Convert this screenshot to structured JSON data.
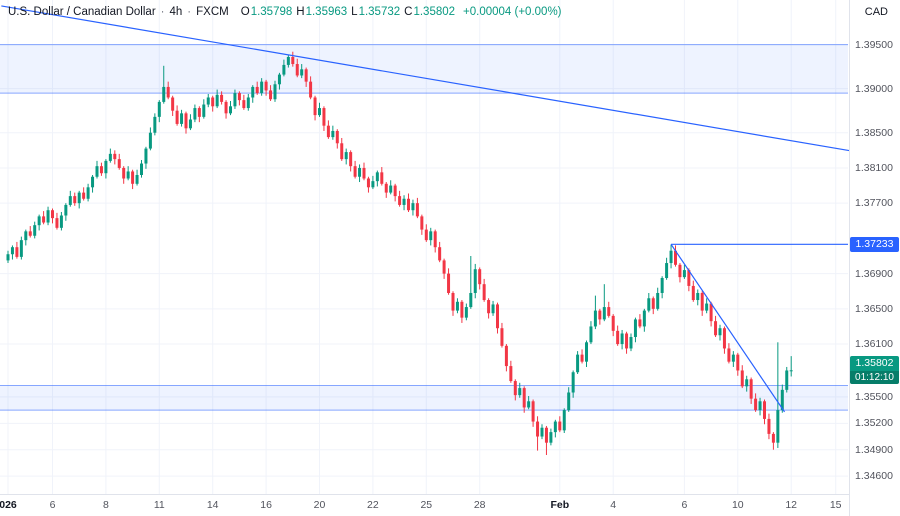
{
  "header": {
    "symbol": "U.S. Dollar / Canadian Dollar",
    "separator": "·",
    "interval": "4h",
    "exchange": "FXCM",
    "o_label": "O",
    "o": "1.35798",
    "h_label": "H",
    "h": "1.35963",
    "l_label": "L",
    "l": "1.35732",
    "c_label": "C",
    "c": "1.35802",
    "change": "+0.00004 (+0.00%)",
    "currency": "CAD"
  },
  "colors": {
    "up": "#089981",
    "down": "#f23645",
    "drawing": "#2962ff",
    "zone_fill": "rgba(41,98,255,0.08)",
    "zone_border": "rgba(41,98,255,0.55)",
    "label_blue_bg": "#2962ff",
    "label_green_bg": "#089981",
    "axis_text": "#51535c",
    "grid": "#f0f3fa"
  },
  "chart_data": {
    "type": "candlestick",
    "title": "U.S. Dollar / Canadian Dollar",
    "interval": "4h",
    "exchange": "FXCM",
    "price_base": 1.0,
    "price_unit": 0.0001,
    "price_axis_ticks": [
      "1.39500",
      "1.39000",
      "1.38500",
      "1.38100",
      "1.37700",
      "1.36900",
      "1.36500",
      "1.36100",
      "1.35500",
      "1.35200",
      "1.34900",
      "1.34600"
    ],
    "time_axis_labels": [
      {
        "label": "026",
        "idx": 0,
        "emph": true
      },
      {
        "label": "6",
        "idx": 10
      },
      {
        "label": "8",
        "idx": 22
      },
      {
        "label": "11",
        "idx": 34
      },
      {
        "label": "14",
        "idx": 46
      },
      {
        "label": "16",
        "idx": 58
      },
      {
        "label": "20",
        "idx": 70
      },
      {
        "label": "22",
        "idx": 82
      },
      {
        "label": "25",
        "idx": 94
      },
      {
        "label": "28",
        "idx": 106
      },
      {
        "label": "Feb",
        "idx": 124,
        "emph": true
      },
      {
        "label": "4",
        "idx": 136
      },
      {
        "label": "6",
        "idx": 152
      },
      {
        "label": "10",
        "idx": 164
      },
      {
        "label": "12",
        "idx": 176
      },
      {
        "label": "15",
        "idx": 186
      }
    ],
    "candles": [
      [
        3705,
        3716,
        3702,
        3712
      ],
      [
        3712,
        3722,
        3706,
        3720
      ],
      [
        3720,
        3726,
        3707,
        3709
      ],
      [
        3709,
        3732,
        3706,
        3728
      ],
      [
        3728,
        3740,
        3722,
        3738
      ],
      [
        3738,
        3744,
        3731,
        3733
      ],
      [
        3733,
        3749,
        3730,
        3745
      ],
      [
        3745,
        3757,
        3739,
        3755
      ],
      [
        3755,
        3761,
        3746,
        3748
      ],
      [
        3748,
        3766,
        3745,
        3762
      ],
      [
        3762,
        3764,
        3747,
        3753
      ],
      [
        3753,
        3759,
        3740,
        3742
      ],
      [
        3742,
        3760,
        3739,
        3756
      ],
      [
        3756,
        3770,
        3750,
        3768
      ],
      [
        3768,
        3784,
        3766,
        3778
      ],
      [
        3778,
        3782,
        3767,
        3770
      ],
      [
        3770,
        3784,
        3764,
        3782
      ],
      [
        3782,
        3788,
        3773,
        3775
      ],
      [
        3775,
        3792,
        3772,
        3788
      ],
      [
        3788,
        3802,
        3782,
        3800
      ],
      [
        3800,
        3818,
        3798,
        3812
      ],
      [
        3812,
        3816,
        3801,
        3804
      ],
      [
        3804,
        3820,
        3798,
        3818
      ],
      [
        3818,
        3832,
        3816,
        3826
      ],
      [
        3826,
        3830,
        3814,
        3820
      ],
      [
        3820,
        3826,
        3808,
        3810
      ],
      [
        3810,
        3812,
        3792,
        3798
      ],
      [
        3798,
        3812,
        3796,
        3806
      ],
      [
        3806,
        3808,
        3786,
        3792
      ],
      [
        3792,
        3808,
        3790,
        3802
      ],
      [
        3802,
        3819,
        3799,
        3815
      ],
      [
        3815,
        3834,
        3809,
        3832
      ],
      [
        3832,
        3856,
        3830,
        3850
      ],
      [
        3850,
        3872,
        3847,
        3868
      ],
      [
        3868,
        3887,
        3862,
        3885
      ],
      [
        3885,
        3926,
        3883,
        3902
      ],
      [
        3902,
        3908,
        3888,
        3890
      ],
      [
        3890,
        3892,
        3869,
        3875
      ],
      [
        3875,
        3881,
        3858,
        3860
      ],
      [
        3860,
        3876,
        3857,
        3872
      ],
      [
        3872,
        3874,
        3849,
        3855
      ],
      [
        3855,
        3871,
        3853,
        3865
      ],
      [
        3865,
        3882,
        3862,
        3878
      ],
      [
        3878,
        3880,
        3862,
        3868
      ],
      [
        3868,
        3888,
        3866,
        3882
      ],
      [
        3882,
        3894,
        3879,
        3890
      ],
      [
        3890,
        3892,
        3874,
        3880
      ],
      [
        3880,
        3899,
        3878,
        3893
      ],
      [
        3893,
        3897,
        3882,
        3885
      ],
      [
        3885,
        3887,
        3866,
        3872
      ],
      [
        3872,
        3886,
        3870,
        3880
      ],
      [
        3880,
        3899,
        3877,
        3895
      ],
      [
        3895,
        3897,
        3881,
        3887
      ],
      [
        3887,
        3893,
        3876,
        3878
      ],
      [
        3878,
        3894,
        3875,
        3890
      ],
      [
        3890,
        3904,
        3884,
        3902
      ],
      [
        3902,
        3908,
        3893,
        3895
      ],
      [
        3895,
        3912,
        3892,
        3908
      ],
      [
        3908,
        3910,
        3892,
        3898
      ],
      [
        3898,
        3904,
        3886,
        3888
      ],
      [
        3888,
        3909,
        3885,
        3905
      ],
      [
        3905,
        3918,
        3899,
        3916
      ],
      [
        3916,
        3933,
        3914,
        3927
      ],
      [
        3927,
        3938,
        3924,
        3936
      ],
      [
        3936,
        3942,
        3925,
        3928
      ],
      [
        3928,
        3934,
        3913,
        3915
      ],
      [
        3915,
        3928,
        3912,
        3922
      ],
      [
        3922,
        3924,
        3902,
        3908
      ],
      [
        3908,
        3914,
        3888,
        3890
      ],
      [
        3890,
        3892,
        3864,
        3870
      ],
      [
        3870,
        3884,
        3868,
        3878
      ],
      [
        3878,
        3880,
        3852,
        3858
      ],
      [
        3858,
        3864,
        3843,
        3845
      ],
      [
        3845,
        3858,
        3842,
        3852
      ],
      [
        3852,
        3854,
        3832,
        3838
      ],
      [
        3838,
        3844,
        3818,
        3820
      ],
      [
        3820,
        3832,
        3814,
        3828
      ],
      [
        3828,
        3830,
        3806,
        3812
      ],
      [
        3812,
        3818,
        3798,
        3800
      ],
      [
        3800,
        3814,
        3794,
        3810
      ],
      [
        3810,
        3816,
        3796,
        3798
      ],
      [
        3798,
        3800,
        3782,
        3788
      ],
      [
        3788,
        3801,
        3786,
        3795
      ],
      [
        3795,
        3807,
        3789,
        3805
      ],
      [
        3805,
        3811,
        3790,
        3792
      ],
      [
        3792,
        3794,
        3776,
        3782
      ],
      [
        3782,
        3796,
        3780,
        3790
      ],
      [
        3790,
        3792,
        3772,
        3778
      ],
      [
        3778,
        3784,
        3766,
        3768
      ],
      [
        3768,
        3779,
        3762,
        3775
      ],
      [
        3775,
        3781,
        3760,
        3762
      ],
      [
        3762,
        3774,
        3756,
        3770
      ],
      [
        3770,
        3776,
        3753,
        3755
      ],
      [
        3755,
        3757,
        3734,
        3740
      ],
      [
        3740,
        3746,
        3726,
        3728
      ],
      [
        3728,
        3742,
        3722,
        3738
      ],
      [
        3738,
        3740,
        3714,
        3720
      ],
      [
        3720,
        3726,
        3703,
        3705
      ],
      [
        3705,
        3707,
        3684,
        3690
      ],
      [
        3690,
        3696,
        3666,
        3668
      ],
      [
        3668,
        3670,
        3642,
        3648
      ],
      [
        3648,
        3662,
        3645,
        3658
      ],
      [
        3658,
        3660,
        3634,
        3640
      ],
      [
        3640,
        3656,
        3637,
        3652
      ],
      [
        3652,
        3710,
        3650,
        3668
      ],
      [
        3668,
        3701,
        3662,
        3695
      ],
      [
        3695,
        3697,
        3672,
        3678
      ],
      [
        3678,
        3684,
        3658,
        3660
      ],
      [
        3660,
        3662,
        3639,
        3645
      ],
      [
        3645,
        3659,
        3642,
        3655
      ],
      [
        3655,
        3657,
        3622,
        3628
      ],
      [
        3628,
        3634,
        3606,
        3608
      ],
      [
        3608,
        3610,
        3579,
        3585
      ],
      [
        3585,
        3591,
        3566,
        3568
      ],
      [
        3568,
        3570,
        3546,
        3552
      ],
      [
        3552,
        3566,
        3549,
        3560
      ],
      [
        3560,
        3562,
        3532,
        3538
      ],
      [
        3538,
        3551,
        3536,
        3545
      ],
      [
        3545,
        3547,
        3516,
        3522
      ],
      [
        3522,
        3528,
        3489,
        3505
      ],
      [
        3505,
        3519,
        3502,
        3515
      ],
      [
        3515,
        3517,
        3484,
        3498
      ],
      [
        3498,
        3514,
        3495,
        3510
      ],
      [
        3510,
        3524,
        3504,
        3522
      ],
      [
        3522,
        3528,
        3510,
        3512
      ],
      [
        3512,
        3537,
        3509,
        3535
      ],
      [
        3535,
        3561,
        3533,
        3555
      ],
      [
        3555,
        3580,
        3549,
        3578
      ],
      [
        3578,
        3602,
        3576,
        3598
      ],
      [
        3598,
        3604,
        3588,
        3590
      ],
      [
        3590,
        3614,
        3584,
        3612
      ],
      [
        3612,
        3636,
        3610,
        3630
      ],
      [
        3630,
        3665,
        3627,
        3648
      ],
      [
        3648,
        3650,
        3632,
        3638
      ],
      [
        3638,
        3678,
        3636,
        3652
      ],
      [
        3652,
        3658,
        3640,
        3642
      ],
      [
        3642,
        3644,
        3619,
        3625
      ],
      [
        3625,
        3631,
        3608,
        3610
      ],
      [
        3610,
        3626,
        3604,
        3622
      ],
      [
        3622,
        3624,
        3599,
        3605
      ],
      [
        3605,
        3622,
        3602,
        3618
      ],
      [
        3618,
        3640,
        3612,
        3638
      ],
      [
        3638,
        3644,
        3628,
        3630
      ],
      [
        3630,
        3650,
        3624,
        3648
      ],
      [
        3648,
        3668,
        3646,
        3662
      ],
      [
        3662,
        3664,
        3644,
        3650
      ],
      [
        3650,
        3674,
        3648,
        3668
      ],
      [
        3668,
        3687,
        3662,
        3685
      ],
      [
        3685,
        3708,
        3683,
        3702
      ],
      [
        3702,
        3723,
        3696,
        3716
      ],
      [
        3716,
        3722,
        3698,
        3700
      ],
      [
        3700,
        3702,
        3680,
        3686
      ],
      [
        3686,
        3700,
        3684,
        3694
      ],
      [
        3694,
        3696,
        3670,
        3676
      ],
      [
        3676,
        3682,
        3658,
        3660
      ],
      [
        3660,
        3672,
        3654,
        3668
      ],
      [
        3668,
        3670,
        3642,
        3648
      ],
      [
        3648,
        3662,
        3645,
        3656
      ],
      [
        3656,
        3658,
        3630,
        3636
      ],
      [
        3636,
        3642,
        3618,
        3620
      ],
      [
        3620,
        3632,
        3614,
        3628
      ],
      [
        3628,
        3630,
        3599,
        3605
      ],
      [
        3605,
        3611,
        3588,
        3590
      ],
      [
        3590,
        3602,
        3584,
        3598
      ],
      [
        3598,
        3600,
        3574,
        3580
      ],
      [
        3580,
        3586,
        3560,
        3562
      ],
      [
        3562,
        3574,
        3556,
        3570
      ],
      [
        3570,
        3572,
        3542,
        3548
      ],
      [
        3548,
        3554,
        3533,
        3535
      ],
      [
        3535,
        3549,
        3529,
        3545
      ],
      [
        3545,
        3547,
        3519,
        3525
      ],
      [
        3525,
        3531,
        3502,
        3508
      ],
      [
        3508,
        3510,
        3490,
        3498
      ],
      [
        3498,
        3612,
        3492,
        3535
      ],
      [
        3535,
        3564,
        3532,
        3558
      ],
      [
        3558,
        3584,
        3555,
        3580
      ],
      [
        3579.8,
        3596.3,
        3573.2,
        3580.2
      ]
    ],
    "drawings": {
      "supply_zone": {
        "price_top": 1.395,
        "price_bottom": 1.3895
      },
      "demand_zone": {
        "price_top": 1.3563,
        "price_bottom": 1.3535
      },
      "descending_trendline_long": {
        "idx1": -1.5,
        "price1": 1.3994,
        "idx2": 191,
        "price2": 1.3828
      },
      "descending_trendline_short": {
        "idx1": 149,
        "price1": 1.37233,
        "idx2": 174.5,
        "price2": 1.3533
      },
      "resistance_ray": {
        "idx1": 149,
        "price": 1.37233
      }
    },
    "ray_price_label": {
      "text": "1.37233",
      "value": 1.37233
    },
    "last_price_label": {
      "price": "1.35802",
      "value": 1.35802,
      "countdown": "01:12:10"
    }
  }
}
